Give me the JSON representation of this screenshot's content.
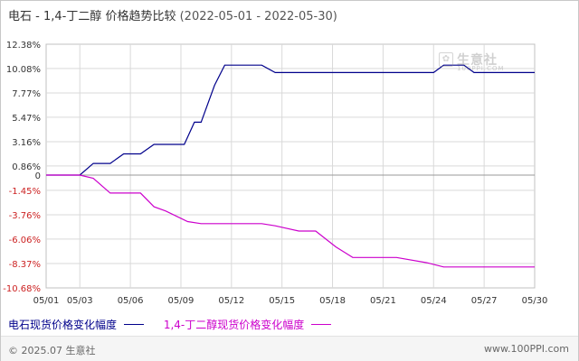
{
  "header": {
    "title": "电石 - 1,4-丁二醇 价格趋势比较",
    "date_range": "(2022-05-01 - 2022-05-30)"
  },
  "watermark": {
    "name": "生意社",
    "url": "100PPI.COM",
    "logo_glyph": "✿"
  },
  "footer": {
    "copyright": "© 2025.07 生意社",
    "site": "www.100PPI.com"
  },
  "colors": {
    "series_1": "#00008b",
    "series_2": "#cc00cc",
    "zero_line": "#999999",
    "grid": "#d9d9d9"
  },
  "chart_data": {
    "type": "line",
    "xlabel": "",
    "ylabel": "",
    "ylim": [
      -10.68,
      12.38
    ],
    "yticks": [
      "12.38%",
      "10.08%",
      "7.77%",
      "5.47%",
      "3.16%",
      "0.86%",
      "0",
      "-1.45%",
      "-3.76%",
      "-6.06%",
      "-8.37%",
      "-10.68%"
    ],
    "ytick_values": [
      12.38,
      10.08,
      7.77,
      5.47,
      3.16,
      0.86,
      0,
      -1.45,
      -3.76,
      -6.06,
      -8.37,
      -10.68
    ],
    "xticks": [
      "05/01",
      "05/03",
      "05/06",
      "05/09",
      "05/12",
      "05/15",
      "05/18",
      "05/21",
      "05/24",
      "05/27",
      "05/30"
    ],
    "xtick_days": [
      1,
      3,
      6,
      9,
      12,
      15,
      18,
      21,
      24,
      27,
      30
    ],
    "legend_position": "bottom",
    "series": [
      {
        "name": "电石现货价格变化幅度",
        "color": "#00008b",
        "points": [
          [
            1,
            0
          ],
          [
            2,
            0
          ],
          [
            3,
            0
          ],
          [
            3.8,
            1.1
          ],
          [
            4.8,
            1.1
          ],
          [
            5.6,
            2.0
          ],
          [
            6.6,
            2.0
          ],
          [
            7.4,
            2.9
          ],
          [
            9.2,
            2.9
          ],
          [
            9.8,
            5.0
          ],
          [
            10.2,
            5.0
          ],
          [
            11.0,
            8.5
          ],
          [
            11.6,
            10.4
          ],
          [
            12.4,
            10.4
          ],
          [
            13.8,
            10.4
          ],
          [
            14.6,
            9.7
          ],
          [
            15,
            9.7
          ],
          [
            18,
            9.7
          ],
          [
            21,
            9.7
          ],
          [
            24,
            9.7
          ],
          [
            24.6,
            10.4
          ],
          [
            25.8,
            10.4
          ],
          [
            26.4,
            9.7
          ],
          [
            27,
            9.7
          ],
          [
            30,
            9.7
          ]
        ]
      },
      {
        "name": "1,4-丁二醇现货价格变化幅度",
        "color": "#cc00cc",
        "points": [
          [
            1,
            0
          ],
          [
            2,
            0
          ],
          [
            3,
            0
          ],
          [
            3.8,
            -0.3
          ],
          [
            4.8,
            -1.7
          ],
          [
            5.6,
            -1.7
          ],
          [
            6.6,
            -1.7
          ],
          [
            7.4,
            -3.0
          ],
          [
            8.1,
            -3.4
          ],
          [
            9.4,
            -4.4
          ],
          [
            10.2,
            -4.6
          ],
          [
            11.6,
            -4.6
          ],
          [
            13.8,
            -4.6
          ],
          [
            14.6,
            -4.8
          ],
          [
            16,
            -5.3
          ],
          [
            17,
            -5.3
          ],
          [
            18.2,
            -6.8
          ],
          [
            19.2,
            -7.8
          ],
          [
            20,
            -7.8
          ],
          [
            21,
            -7.8
          ],
          [
            21.8,
            -7.8
          ],
          [
            23.6,
            -8.3
          ],
          [
            24.6,
            -8.7
          ],
          [
            25.5,
            -8.7
          ],
          [
            27,
            -8.7
          ],
          [
            30,
            -8.7
          ]
        ]
      }
    ]
  }
}
